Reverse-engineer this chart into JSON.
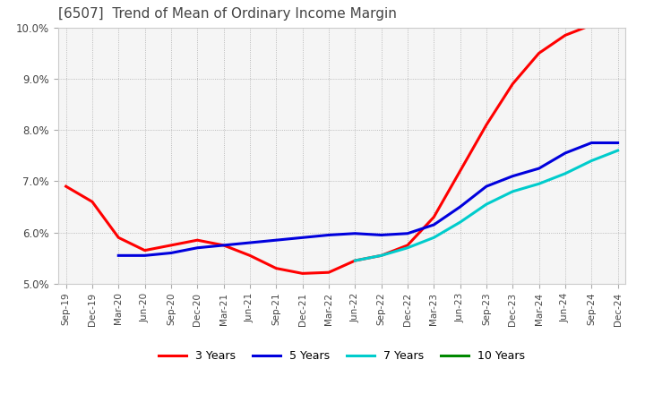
{
  "title": "[6507]  Trend of Mean of Ordinary Income Margin",
  "title_fontsize": 11,
  "background_color": "#ffffff",
  "plot_bg_color": "#f5f5f5",
  "grid_color": "#aaaaaa",
  "x_labels": [
    "Sep-19",
    "Dec-19",
    "Mar-20",
    "Jun-20",
    "Sep-20",
    "Dec-20",
    "Mar-21",
    "Jun-21",
    "Sep-21",
    "Dec-21",
    "Mar-22",
    "Jun-22",
    "Sep-22",
    "Dec-22",
    "Mar-23",
    "Jun-23",
    "Sep-23",
    "Dec-23",
    "Mar-24",
    "Jun-24",
    "Sep-24",
    "Dec-24"
  ],
  "y_min": 5.0,
  "y_max": 10.0,
  "y_step": 1.0,
  "series": {
    "3 Years": {
      "color": "#ff0000",
      "values": [
        6.9,
        6.6,
        5.9,
        5.65,
        5.75,
        5.85,
        5.75,
        5.55,
        5.3,
        5.2,
        5.22,
        5.45,
        5.55,
        5.75,
        6.3,
        7.2,
        8.1,
        8.9,
        9.5,
        9.85,
        10.05,
        null
      ]
    },
    "5 Years": {
      "color": "#0000dd",
      "values": [
        null,
        null,
        5.55,
        5.55,
        5.6,
        5.7,
        5.75,
        5.8,
        5.85,
        5.9,
        5.95,
        5.98,
        5.95,
        5.98,
        6.15,
        6.5,
        6.9,
        7.1,
        7.25,
        7.55,
        7.75,
        7.75
      ]
    },
    "7 Years": {
      "color": "#00cccc",
      "values": [
        null,
        null,
        null,
        null,
        null,
        null,
        null,
        null,
        null,
        null,
        null,
        5.45,
        5.55,
        5.7,
        5.9,
        6.2,
        6.55,
        6.8,
        6.95,
        7.15,
        7.4,
        7.6
      ]
    },
    "10 Years": {
      "color": "#008800",
      "values": [
        null,
        null,
        null,
        null,
        null,
        null,
        null,
        null,
        null,
        null,
        null,
        null,
        null,
        null,
        null,
        null,
        null,
        null,
        null,
        null,
        null,
        null
      ]
    }
  },
  "legend_loc": "lower center",
  "legend_ncol": 4,
  "line_width": 2.2
}
